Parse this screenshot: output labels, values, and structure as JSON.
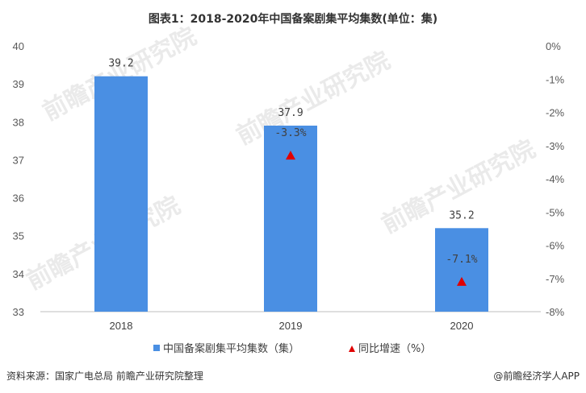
{
  "title": "图表1：2018-2020年中国备案剧集平均集数(单位：集)",
  "source": "资料来源：国家广电总局 前瞻产业研究院整理",
  "brand": "@前瞻经济学人APP",
  "watermark": "前瞻产业研究院",
  "colors": {
    "bar": "#4a8fe3",
    "marker": "#e00000",
    "axis": "#bfbfbf",
    "text": "#404040"
  },
  "chart_data": {
    "type": "bar",
    "categories": [
      "2018",
      "2019",
      "2020"
    ],
    "series": [
      {
        "name": "中国备案剧集平均集数（集）",
        "axis": "left",
        "type": "bar",
        "values": [
          39.2,
          37.9,
          35.2
        ],
        "labels": [
          "39.2",
          "37.9",
          "35.2"
        ]
      },
      {
        "name": "同比增速（%）",
        "axis": "right",
        "type": "scatter",
        "marker": "triangle",
        "values": [
          null,
          -3.3,
          -7.1
        ],
        "labels": [
          "",
          "-3.3%",
          "-7.1%"
        ]
      }
    ],
    "y_left": {
      "min": 33,
      "max": 40,
      "ticks": [
        "40",
        "39",
        "38",
        "37",
        "36",
        "35",
        "34",
        "33"
      ]
    },
    "y_right": {
      "min": -8,
      "max": 0,
      "ticks": [
        "0%",
        "-1%",
        "-2%",
        "-3%",
        "-4%",
        "-5%",
        "-6%",
        "-7%",
        "-8%"
      ]
    },
    "grid": false,
    "legend_position": "bottom"
  }
}
